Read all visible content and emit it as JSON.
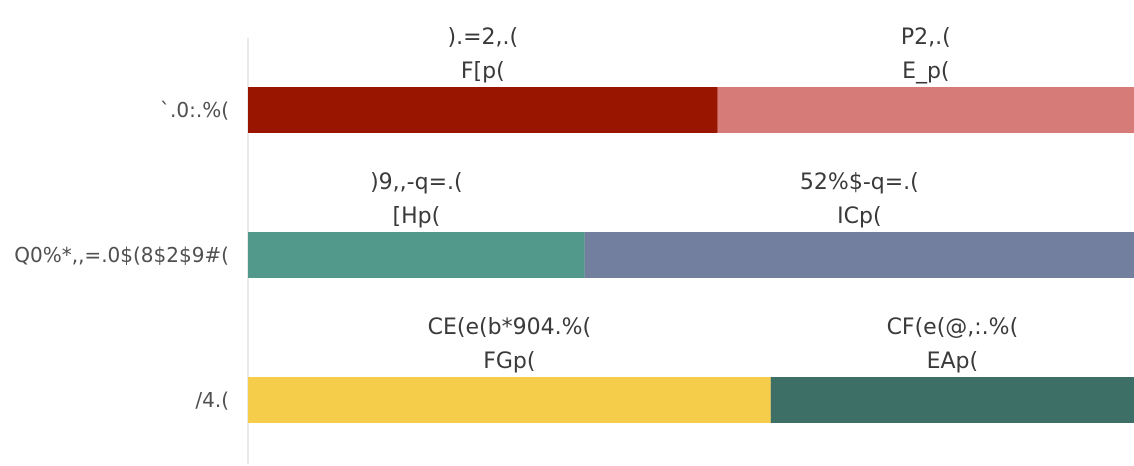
{
  "chart_data": {
    "type": "bar",
    "orientation": "horizontal",
    "stacked": true,
    "normalized": true,
    "title": "",
    "xlabel": "",
    "ylabel": "",
    "legend": "none",
    "grid": false,
    "xlim": [
      0,
      100
    ],
    "categories": [
      "`.0:.%(",
      "Q0%*,,=.0$(8$2$9#(",
      "/4.("
    ],
    "rows": [
      {
        "category": "`.0:.%(",
        "segments": [
          {
            "name": ").=2,.(",
            "value": 53,
            "value_label": "F[p(",
            "color": "#991500"
          },
          {
            "name": "P2,.(",
            "value": 47,
            "value_label": "E_p(",
            "color": "#d77b79"
          }
        ]
      },
      {
        "category": "Q0%*,,=.0$(8$2$9#(",
        "segments": [
          {
            "name": ")9,,-q=.(",
            "value": 38,
            "value_label": "[Hp(",
            "color": "#52998b"
          },
          {
            "name": "52%$-q=.(",
            "value": 62,
            "value_label": "ICp(",
            "color": "#737f9f"
          }
        ]
      },
      {
        "category": "/4.(",
        "segments": [
          {
            "name": "CE(e(b*904.%(",
            "value": 59,
            "value_label": "FGp(",
            "color": "#f6cc4b"
          },
          {
            "name": "CF(e(@,:.%(",
            "value": 41,
            "value_label": "EAp(",
            "color": "#3e6f67"
          }
        ]
      }
    ]
  }
}
